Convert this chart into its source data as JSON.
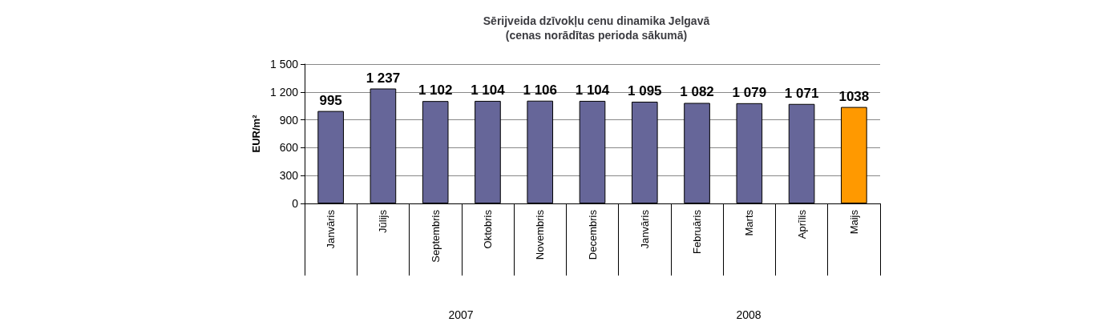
{
  "chart_data": {
    "type": "bar",
    "title": "Sērijveida dzīvokļu cenu dinamika Jelgavā\n(cenas norādītas perioda sākumā)",
    "ylabel": "EUR/m²",
    "categories": [
      "Janvāris",
      "Jūlijs",
      "Septembris",
      "Oktobris",
      "Novembris",
      "Decembris",
      "Janvāris",
      "Februāris",
      "Marts",
      "Aprīlis",
      "Maijs"
    ],
    "values": [
      995,
      1237,
      1102,
      1104,
      1106,
      1104,
      1095,
      1082,
      1079,
      1071,
      1038
    ],
    "value_labels": [
      "995",
      "1 237",
      "1 102",
      "1 104",
      "1 106",
      "1 104",
      "1 095",
      "1 082",
      "1 079",
      "1 071",
      "1038"
    ],
    "colors": [
      "#666699",
      "#666699",
      "#666699",
      "#666699",
      "#666699",
      "#666699",
      "#666699",
      "#666699",
      "#666699",
      "#666699",
      "#ff9900"
    ],
    "ylim": [
      0,
      1500
    ],
    "yticks": [
      0,
      300,
      600,
      900,
      {
        "value": 1200,
        "label": "1 200"
      },
      {
        "value": 1500,
        "label": "1 500"
      }
    ],
    "annotations": [
      "2007",
      "2008"
    ],
    "grid": "y"
  }
}
